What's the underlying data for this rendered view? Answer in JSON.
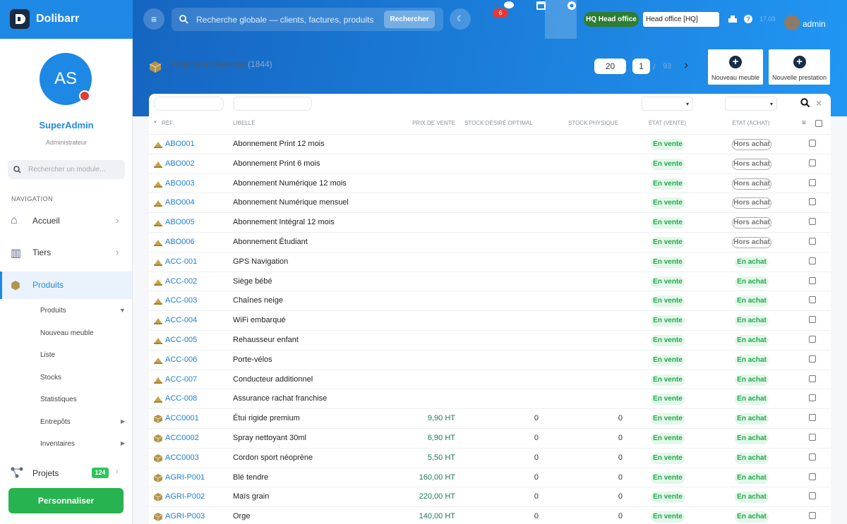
{
  "sidebar": {
    "brand": "Dolibarr",
    "avatar": "AS",
    "user": "SuperAdmin",
    "role": "Administrateur",
    "search_placeholder": "Rechercher un module...",
    "nav_label": "NAVIGATION",
    "menu": [
      {
        "label": "Accueil"
      },
      {
        "label": "Tiers"
      },
      {
        "label": "Produits",
        "active": true
      }
    ],
    "submenu": [
      "Produits",
      "Nouveau meuble",
      "Liste",
      "Stocks",
      "Statistiques",
      "Entrepôts",
      "Inventaires"
    ],
    "projects": {
      "label": "Projets",
      "badge": "124"
    },
    "button": "Personnaliser"
  },
  "topbar": {
    "search_placeholder": "Recherche globale — clients, factures, produits",
    "search_button": "Rechercher",
    "notifications": "6",
    "entity": "HQ Head office",
    "entity_select": "Head office [HQ]",
    "version": "17.03",
    "user": "admin"
  },
  "page": {
    "title": "Produits et Services",
    "count": "(1844)",
    "page_size": "20",
    "page": "1",
    "separator": "/",
    "total_pages": "93",
    "buttons": [
      "Nouveau meuble",
      "Nouvelle prestation"
    ]
  },
  "table": {
    "columns": [
      "RÉF.",
      "LIBELLÉ",
      "PRIX DE VENTE",
      "STOCK DÉSIRÉ OPTIMAL",
      "STOCK PHYSIQUE",
      "ÉTAT (VENTE)",
      "ÉTAT (ACHAT)"
    ],
    "rows": [
      {
        "kind": "service",
        "ref": "ABO001",
        "label": "Abonnement Print 12 mois",
        "price": null,
        "stock_desired": null,
        "stock_physical": null,
        "sell": "En vente",
        "buy": "Hors achat"
      },
      {
        "kind": "service",
        "ref": "ABO002",
        "label": "Abonnement Print 6 mois",
        "price": null,
        "stock_desired": null,
        "stock_physical": null,
        "sell": "En vente",
        "buy": "Hors achat"
      },
      {
        "kind": "service",
        "ref": "ABO003",
        "label": "Abonnement Numérique 12 mois",
        "price": null,
        "stock_desired": null,
        "stock_physical": null,
        "sell": "En vente",
        "buy": "Hors achat"
      },
      {
        "kind": "service",
        "ref": "ABO004",
        "label": "Abonnement Numérique mensuel",
        "price": null,
        "stock_desired": null,
        "stock_physical": null,
        "sell": "En vente",
        "buy": "Hors achat"
      },
      {
        "kind": "service",
        "ref": "ABO005",
        "label": "Abonnement Intégral 12 mois",
        "price": null,
        "stock_desired": null,
        "stock_physical": null,
        "sell": "En vente",
        "buy": "Hors achat"
      },
      {
        "kind": "service",
        "ref": "ABO006",
        "label": "Abonnement Étudiant",
        "price": null,
        "stock_desired": null,
        "stock_physical": null,
        "sell": "En vente",
        "buy": "Hors achat"
      },
      {
        "kind": "service",
        "ref": "ACC-001",
        "label": "GPS Navigation",
        "price": null,
        "stock_desired": null,
        "stock_physical": null,
        "sell": "En vente",
        "buy": "En achat"
      },
      {
        "kind": "service",
        "ref": "ACC-002",
        "label": "Siège bébé",
        "price": null,
        "stock_desired": null,
        "stock_physical": null,
        "sell": "En vente",
        "buy": "En achat"
      },
      {
        "kind": "service",
        "ref": "ACC-003",
        "label": "Chaînes neige",
        "price": null,
        "stock_desired": null,
        "stock_physical": null,
        "sell": "En vente",
        "buy": "En achat"
      },
      {
        "kind": "service",
        "ref": "ACC-004",
        "label": "WiFi embarqué",
        "price": null,
        "stock_desired": null,
        "stock_physical": null,
        "sell": "En vente",
        "buy": "En achat"
      },
      {
        "kind": "service",
        "ref": "ACC-005",
        "label": "Rehausseur enfant",
        "price": null,
        "stock_desired": null,
        "stock_physical": null,
        "sell": "En vente",
        "buy": "En achat"
      },
      {
        "kind": "service",
        "ref": "ACC-006",
        "label": "Porte-vélos",
        "price": null,
        "stock_desired": null,
        "stock_physical": null,
        "sell": "En vente",
        "buy": "En achat"
      },
      {
        "kind": "service",
        "ref": "ACC-007",
        "label": "Conducteur additionnel",
        "price": null,
        "stock_desired": null,
        "stock_physical": null,
        "sell": "En vente",
        "buy": "En achat"
      },
      {
        "kind": "service",
        "ref": "ACC-008",
        "label": "Assurance rachat franchise",
        "price": null,
        "stock_desired": null,
        "stock_physical": null,
        "sell": "En vente",
        "buy": "En achat"
      },
      {
        "kind": "product",
        "ref": "ACC0001",
        "label": "Étui rigide premium",
        "price": "9,90 HT",
        "stock_desired": 0,
        "stock_physical": 0,
        "sell": "En vente",
        "buy": "En achat"
      },
      {
        "kind": "product",
        "ref": "ACC0002",
        "label": "Spray nettoyant 30ml",
        "price": "6,90 HT",
        "stock_desired": 0,
        "stock_physical": 0,
        "sell": "En vente",
        "buy": "En achat"
      },
      {
        "kind": "product",
        "ref": "ACC0003",
        "label": "Cordon sport néoprène",
        "price": "5,50 HT",
        "stock_desired": 0,
        "stock_physical": 0,
        "sell": "En vente",
        "buy": "En achat"
      },
      {
        "kind": "product",
        "ref": "AGRI-P001",
        "label": "Blé tendre",
        "price": "160,00 HT",
        "stock_desired": 0,
        "stock_physical": 0,
        "sell": "En vente",
        "buy": "En achat"
      },
      {
        "kind": "product",
        "ref": "AGRI-P002",
        "label": "Maïs grain",
        "price": "220,00 HT",
        "stock_desired": 0,
        "stock_physical": 0,
        "sell": "En vente",
        "buy": "En achat"
      },
      {
        "kind": "product",
        "ref": "AGRI-P003",
        "label": "Orge",
        "price": "140,00 HT",
        "stock_desired": 0,
        "stock_physical": 0,
        "sell": "En vente",
        "buy": "En achat"
      }
    ]
  }
}
